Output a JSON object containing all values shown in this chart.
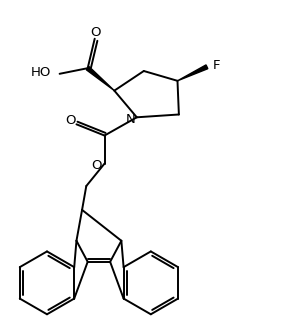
{
  "background_color": "#ffffff",
  "line_color": "#000000",
  "lw": 1.4,
  "figsize": [
    2.82,
    3.3
  ],
  "dpi": 100,
  "xlim": [
    0,
    10
  ],
  "ylim": [
    0,
    11.7
  ]
}
